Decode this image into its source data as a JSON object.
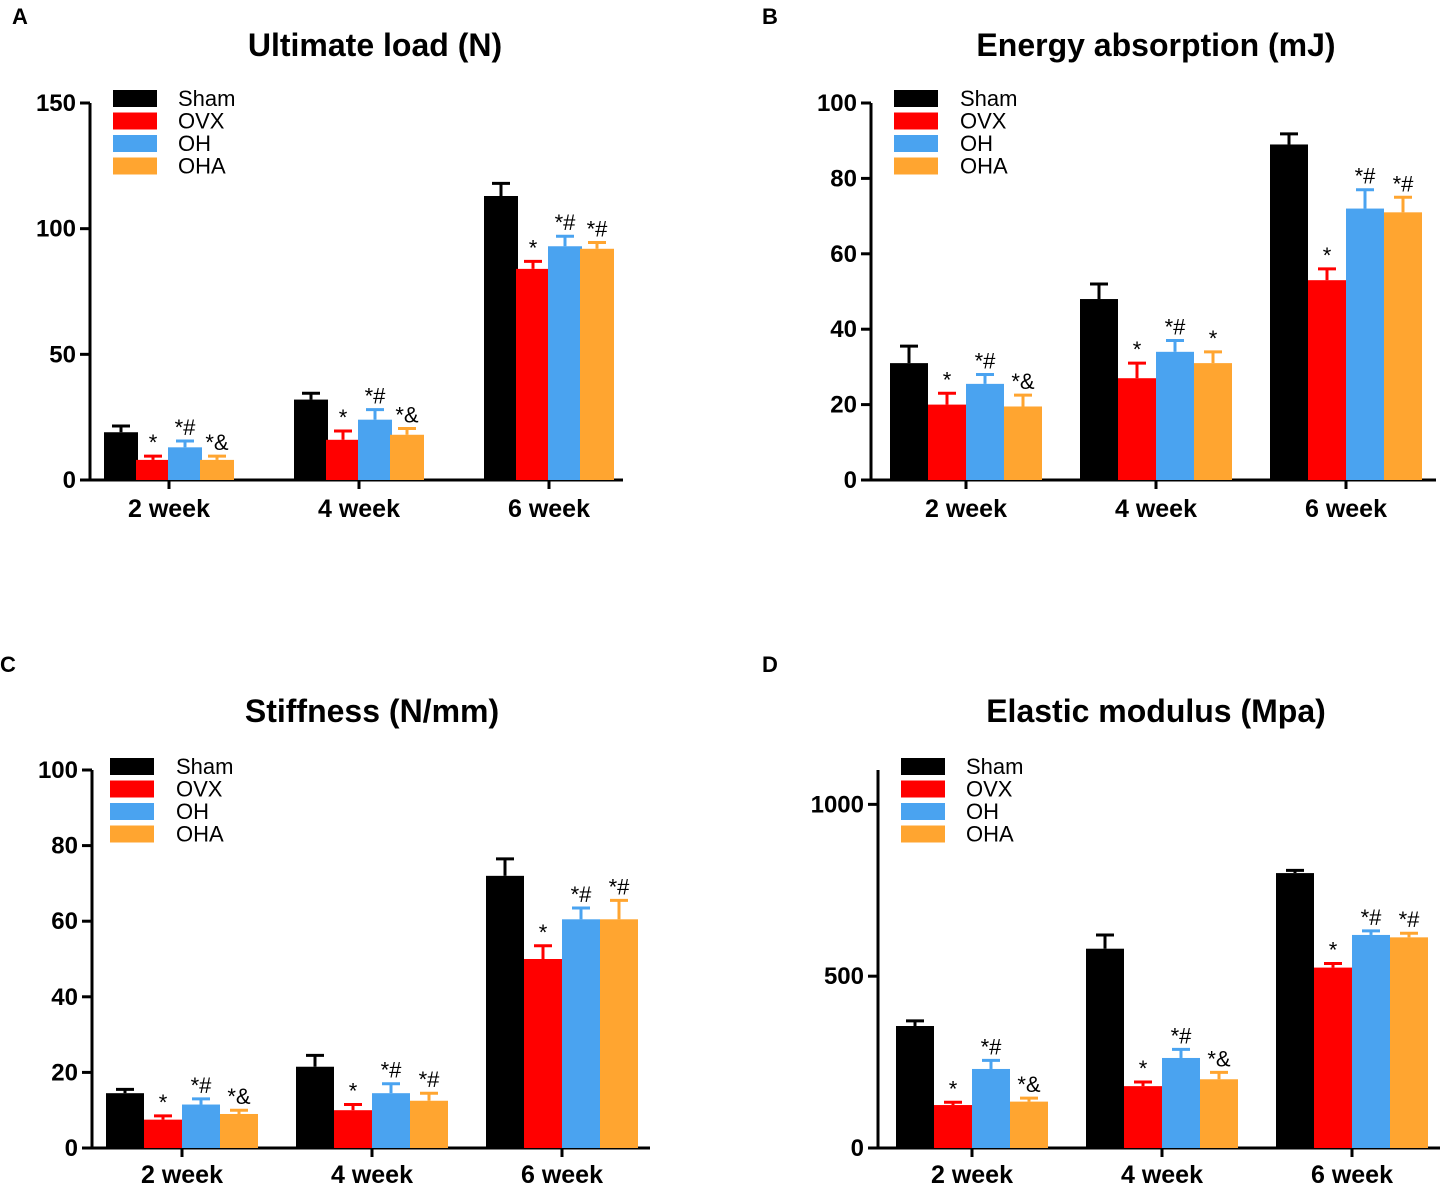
{
  "chart_data": [
    {
      "type": "bar",
      "panel_label": "A",
      "title": "Ultimate load (N)",
      "categories": [
        "2 week",
        "4 week",
        "6 week"
      ],
      "ylim": [
        0,
        150
      ],
      "yticks": [
        0,
        50,
        100,
        150
      ],
      "series": [
        {
          "name": "Sham",
          "color": "#000000",
          "values": [
            19,
            32,
            113
          ],
          "errors": [
            2.5,
            2.5,
            5
          ],
          "annotations": [
            "",
            "",
            ""
          ]
        },
        {
          "name": "OVX",
          "color": "#ff0000",
          "values": [
            8,
            16,
            84
          ],
          "errors": [
            1.5,
            3.5,
            3
          ],
          "annotations": [
            "*",
            "*",
            "*"
          ]
        },
        {
          "name": "OH",
          "color": "#4aa3f0",
          "values": [
            13,
            24,
            93
          ],
          "errors": [
            2.5,
            4,
            4
          ],
          "annotations": [
            "*#",
            "*#",
            "*#"
          ]
        },
        {
          "name": "OHA",
          "color": "#ffa530",
          "values": [
            8,
            18,
            92
          ],
          "errors": [
            1.5,
            2.5,
            2.5
          ],
          "annotations": [
            "*&",
            "*&",
            "*#"
          ]
        }
      ]
    },
    {
      "type": "bar",
      "panel_label": "B",
      "title": "Energy absorption (mJ)",
      "categories": [
        "2 week",
        "4 week",
        "6 week"
      ],
      "ylim": [
        0,
        100
      ],
      "yticks": [
        0,
        20,
        40,
        60,
        80,
        100
      ],
      "series": [
        {
          "name": "Sham",
          "color": "#000000",
          "values": [
            31,
            48,
            89
          ],
          "errors": [
            4.5,
            4,
            2.8
          ],
          "annotations": [
            "",
            "",
            ""
          ]
        },
        {
          "name": "OVX",
          "color": "#ff0000",
          "values": [
            20,
            27,
            53
          ],
          "errors": [
            3,
            4,
            3
          ],
          "annotations": [
            "*",
            "*",
            "*"
          ]
        },
        {
          "name": "OH",
          "color": "#4aa3f0",
          "values": [
            25.5,
            34,
            72
          ],
          "errors": [
            2.5,
            3,
            5
          ],
          "annotations": [
            "*#",
            "*#",
            "*#"
          ]
        },
        {
          "name": "OHA",
          "color": "#ffa530",
          "values": [
            19.5,
            31,
            71
          ],
          "errors": [
            3,
            3,
            4
          ],
          "annotations": [
            "*&",
            "*",
            "*#"
          ]
        }
      ]
    },
    {
      "type": "bar",
      "panel_label": "C",
      "title": "Stiffness (N/mm)",
      "categories": [
        "2 week",
        "4 week",
        "6 week"
      ],
      "ylim": [
        0,
        100
      ],
      "yticks": [
        0,
        20,
        40,
        60,
        80,
        100
      ],
      "series": [
        {
          "name": "Sham",
          "color": "#000000",
          "values": [
            14.5,
            21.5,
            72
          ],
          "errors": [
            1,
            3,
            4.5
          ],
          "annotations": [
            "",
            "",
            ""
          ]
        },
        {
          "name": "OVX",
          "color": "#ff0000",
          "values": [
            7.5,
            10,
            50
          ],
          "errors": [
            1,
            1.5,
            3.5
          ],
          "annotations": [
            "*",
            "*",
            "*"
          ]
        },
        {
          "name": "OH",
          "color": "#4aa3f0",
          "values": [
            11.5,
            14.5,
            60.5
          ],
          "errors": [
            1.5,
            2.5,
            3
          ],
          "annotations": [
            "*#",
            "*#",
            "*#"
          ]
        },
        {
          "name": "OHA",
          "color": "#ffa530",
          "values": [
            9,
            12.5,
            60.5
          ],
          "errors": [
            1,
            2,
            5
          ],
          "annotations": [
            "*&",
            "*#",
            "*#"
          ]
        }
      ]
    },
    {
      "type": "bar",
      "panel_label": "D",
      "title": "Elastic modulus (Mpa)",
      "categories": [
        "2 week",
        "4 week",
        "6 week"
      ],
      "ylim": [
        0,
        1100
      ],
      "yticks": [
        0,
        500,
        1000
      ],
      "series": [
        {
          "name": "Sham",
          "color": "#000000",
          "values": [
            355,
            580,
            800
          ],
          "errors": [
            15,
            40,
            8
          ],
          "annotations": [
            "",
            "",
            ""
          ]
        },
        {
          "name": "OVX",
          "color": "#ff0000",
          "values": [
            125,
            180,
            525
          ],
          "errors": [
            8,
            12,
            12
          ],
          "annotations": [
            "*",
            "*",
            "*"
          ]
        },
        {
          "name": "OH",
          "color": "#4aa3f0",
          "values": [
            230,
            262,
            620
          ],
          "errors": [
            25,
            25,
            12
          ],
          "annotations": [
            "*#",
            "*#",
            "*#"
          ]
        },
        {
          "name": "OHA",
          "color": "#ffa530",
          "values": [
            135,
            200,
            613
          ],
          "errors": [
            10,
            20,
            12
          ],
          "annotations": [
            "*&",
            "*&",
            "*#"
          ]
        }
      ]
    }
  ]
}
